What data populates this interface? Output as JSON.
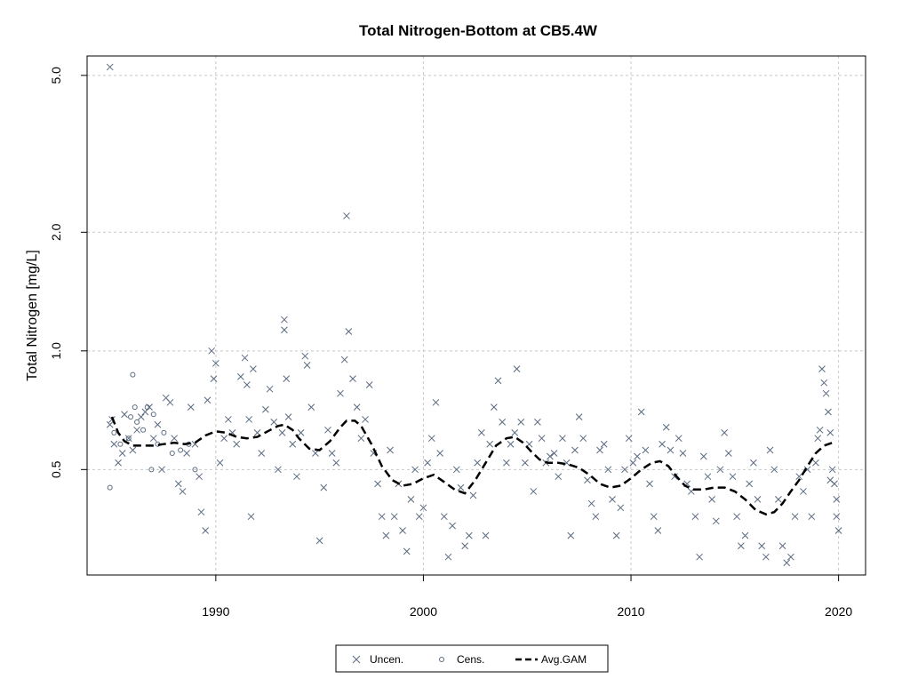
{
  "chart_data": {
    "type": "scatter",
    "title": "Total Nitrogen-Bottom at CB5.4W",
    "xlabel": "",
    "ylabel": "Total Nitrogen [mg/L]",
    "y_scale": "log",
    "xlim": [
      1983.8,
      2021.3
    ],
    "ylim": [
      0.27,
      5.6
    ],
    "x_ticks": [
      1990,
      2000,
      2010,
      2020
    ],
    "x_tick_labels": [
      "1990",
      "2000",
      "2010",
      "2020"
    ],
    "y_ticks": [
      0.5,
      1.0,
      2.0,
      5.0
    ],
    "y_tick_labels": [
      "0.5",
      "1.0",
      "2.0",
      "5.0"
    ],
    "grid": true,
    "legend_position": "bottom",
    "colors": {
      "points": "#5a6a80",
      "line": "#000000",
      "grid": "#c8c8c8"
    },
    "series": [
      {
        "name": "Uncen.",
        "marker": "x",
        "points": [
          [
            1984.9,
            5.25
          ],
          [
            1984.9,
            0.65
          ],
          [
            1985.0,
            0.67
          ],
          [
            1985.1,
            0.58
          ],
          [
            1985.3,
            0.52
          ],
          [
            1985.5,
            0.55
          ],
          [
            1985.6,
            0.69
          ],
          [
            1985.8,
            0.6
          ],
          [
            1986.0,
            0.56
          ],
          [
            1986.2,
            0.63
          ],
          [
            1986.4,
            0.68
          ],
          [
            1986.6,
            0.7
          ],
          [
            1986.8,
            0.72
          ],
          [
            1987.0,
            0.6
          ],
          [
            1987.2,
            0.65
          ],
          [
            1987.4,
            0.5
          ],
          [
            1987.6,
            0.76
          ],
          [
            1987.8,
            0.74
          ],
          [
            1988.0,
            0.6
          ],
          [
            1988.2,
            0.46
          ],
          [
            1988.4,
            0.44
          ],
          [
            1988.6,
            0.55
          ],
          [
            1988.8,
            0.72
          ],
          [
            1989.0,
            0.58
          ],
          [
            1989.2,
            0.48
          ],
          [
            1989.3,
            0.39
          ],
          [
            1989.5,
            0.35
          ],
          [
            1989.6,
            0.75
          ],
          [
            1989.8,
            1.0
          ],
          [
            1989.9,
            0.85
          ],
          [
            1990.0,
            0.93
          ],
          [
            1990.2,
            0.52
          ],
          [
            1990.4,
            0.6
          ],
          [
            1990.6,
            0.67
          ],
          [
            1990.8,
            0.62
          ],
          [
            1991.0,
            0.58
          ],
          [
            1991.2,
            0.86
          ],
          [
            1991.4,
            0.96
          ],
          [
            1991.5,
            0.82
          ],
          [
            1991.6,
            0.67
          ],
          [
            1991.7,
            0.38
          ],
          [
            1991.8,
            0.9
          ],
          [
            1992.0,
            0.62
          ],
          [
            1992.2,
            0.55
          ],
          [
            1992.4,
            0.71
          ],
          [
            1992.6,
            0.8
          ],
          [
            1992.8,
            0.66
          ],
          [
            1993.0,
            0.5
          ],
          [
            1993.2,
            0.62
          ],
          [
            1993.3,
            1.2
          ],
          [
            1993.3,
            1.13
          ],
          [
            1993.4,
            0.85
          ],
          [
            1993.5,
            0.68
          ],
          [
            1993.7,
            0.58
          ],
          [
            1993.9,
            0.48
          ],
          [
            1994.1,
            0.62
          ],
          [
            1994.3,
            0.97
          ],
          [
            1994.4,
            0.92
          ],
          [
            1994.6,
            0.72
          ],
          [
            1994.8,
            0.55
          ],
          [
            1995.0,
            0.33
          ],
          [
            1995.2,
            0.45
          ],
          [
            1995.4,
            0.63
          ],
          [
            1995.6,
            0.55
          ],
          [
            1995.8,
            0.52
          ],
          [
            1996.0,
            0.78
          ],
          [
            1996.2,
            0.95
          ],
          [
            1996.3,
            2.2
          ],
          [
            1996.4,
            1.12
          ],
          [
            1996.6,
            0.85
          ],
          [
            1996.8,
            0.72
          ],
          [
            1997.0,
            0.6
          ],
          [
            1997.2,
            0.67
          ],
          [
            1997.4,
            0.82
          ],
          [
            1997.6,
            0.55
          ],
          [
            1997.8,
            0.46
          ],
          [
            1998.0,
            0.38
          ],
          [
            1998.2,
            0.34
          ],
          [
            1998.4,
            0.56
          ],
          [
            1998.6,
            0.38
          ],
          [
            1998.8,
            0.46
          ],
          [
            1999.0,
            0.35
          ],
          [
            1999.2,
            0.31
          ],
          [
            1999.4,
            0.42
          ],
          [
            1999.6,
            0.5
          ],
          [
            1999.8,
            0.38
          ],
          [
            2000.0,
            0.4
          ],
          [
            2000.2,
            0.52
          ],
          [
            2000.4,
            0.6
          ],
          [
            2000.6,
            0.74
          ],
          [
            2000.8,
            0.55
          ],
          [
            2001.0,
            0.38
          ],
          [
            2001.2,
            0.3
          ],
          [
            2001.4,
            0.36
          ],
          [
            2001.6,
            0.5
          ],
          [
            2001.8,
            0.45
          ],
          [
            2002.0,
            0.32
          ],
          [
            2002.2,
            0.34
          ],
          [
            2002.4,
            0.43
          ],
          [
            2002.6,
            0.52
          ],
          [
            2002.8,
            0.62
          ],
          [
            2003.0,
            0.34
          ],
          [
            2003.2,
            0.58
          ],
          [
            2003.4,
            0.72
          ],
          [
            2003.6,
            0.84
          ],
          [
            2003.8,
            0.66
          ],
          [
            2004.0,
            0.52
          ],
          [
            2004.2,
            0.58
          ],
          [
            2004.4,
            0.62
          ],
          [
            2004.5,
            0.9
          ],
          [
            2004.7,
            0.66
          ],
          [
            2004.9,
            0.52
          ],
          [
            2005.1,
            0.58
          ],
          [
            2005.3,
            0.44
          ],
          [
            2005.5,
            0.66
          ],
          [
            2005.7,
            0.6
          ],
          [
            2005.9,
            0.52
          ],
          [
            2006.1,
            0.54
          ],
          [
            2006.3,
            0.55
          ],
          [
            2006.5,
            0.48
          ],
          [
            2006.7,
            0.6
          ],
          [
            2006.9,
            0.52
          ],
          [
            2007.1,
            0.34
          ],
          [
            2007.3,
            0.56
          ],
          [
            2007.5,
            0.68
          ],
          [
            2007.7,
            0.6
          ],
          [
            2007.9,
            0.47
          ],
          [
            2008.1,
            0.41
          ],
          [
            2008.3,
            0.38
          ],
          [
            2008.5,
            0.56
          ],
          [
            2008.7,
            0.58
          ],
          [
            2008.9,
            0.5
          ],
          [
            2009.1,
            0.42
          ],
          [
            2009.3,
            0.34
          ],
          [
            2009.5,
            0.4
          ],
          [
            2009.7,
            0.5
          ],
          [
            2009.9,
            0.6
          ],
          [
            2010.1,
            0.52
          ],
          [
            2010.3,
            0.54
          ],
          [
            2010.5,
            0.7
          ],
          [
            2010.7,
            0.56
          ],
          [
            2010.9,
            0.46
          ],
          [
            2011.1,
            0.38
          ],
          [
            2011.3,
            0.35
          ],
          [
            2011.5,
            0.58
          ],
          [
            2011.7,
            0.64
          ],
          [
            2011.9,
            0.56
          ],
          [
            2012.1,
            0.48
          ],
          [
            2012.3,
            0.6
          ],
          [
            2012.5,
            0.55
          ],
          [
            2012.7,
            0.46
          ],
          [
            2012.9,
            0.44
          ],
          [
            2013.1,
            0.38
          ],
          [
            2013.3,
            0.3
          ],
          [
            2013.5,
            0.54
          ],
          [
            2013.7,
            0.48
          ],
          [
            2013.9,
            0.42
          ],
          [
            2014.1,
            0.37
          ],
          [
            2014.3,
            0.5
          ],
          [
            2014.5,
            0.62
          ],
          [
            2014.7,
            0.55
          ],
          [
            2014.9,
            0.48
          ],
          [
            2015.1,
            0.38
          ],
          [
            2015.3,
            0.32
          ],
          [
            2015.5,
            0.34
          ],
          [
            2015.7,
            0.46
          ],
          [
            2015.9,
            0.52
          ],
          [
            2016.1,
            0.42
          ],
          [
            2016.3,
            0.32
          ],
          [
            2016.5,
            0.3
          ],
          [
            2016.7,
            0.56
          ],
          [
            2016.9,
            0.5
          ],
          [
            2017.1,
            0.42
          ],
          [
            2017.3,
            0.32
          ],
          [
            2017.5,
            0.29
          ],
          [
            2017.7,
            0.3
          ],
          [
            2017.9,
            0.38
          ],
          [
            2018.1,
            0.48
          ],
          [
            2018.3,
            0.44
          ],
          [
            2018.5,
            0.5
          ],
          [
            2018.7,
            0.38
          ],
          [
            2018.9,
            0.52
          ],
          [
            2019.0,
            0.6
          ],
          [
            2019.1,
            0.63
          ],
          [
            2019.2,
            0.9
          ],
          [
            2019.3,
            0.83
          ],
          [
            2019.4,
            0.78
          ],
          [
            2019.5,
            0.7
          ],
          [
            2019.6,
            0.62
          ],
          [
            2019.7,
            0.5
          ],
          [
            2019.8,
            0.46
          ],
          [
            2019.9,
            0.38
          ],
          [
            2020.0,
            0.35
          ],
          [
            2019.9,
            0.42
          ],
          [
            2019.6,
            0.47
          ]
        ]
      },
      {
        "name": "Cens.",
        "marker": "o",
        "points": [
          [
            1984.9,
            0.45
          ],
          [
            1985.1,
            0.62
          ],
          [
            1985.4,
            0.58
          ],
          [
            1985.8,
            0.6
          ],
          [
            1986.0,
            0.87
          ],
          [
            1986.1,
            0.72
          ],
          [
            1986.2,
            0.66
          ],
          [
            1986.5,
            0.63
          ],
          [
            1986.9,
            0.5
          ],
          [
            1987.2,
            0.58
          ],
          [
            1987.5,
            0.62
          ],
          [
            1987.9,
            0.55
          ],
          [
            1988.3,
            0.56
          ],
          [
            1988.7,
            0.58
          ],
          [
            1989.0,
            0.5
          ],
          [
            1986.7,
            0.72
          ],
          [
            1987.0,
            0.69
          ],
          [
            1985.9,
            0.68
          ]
        ]
      },
      {
        "name": "Avg.GAM",
        "marker": "line",
        "points": [
          [
            1985.0,
            0.68
          ],
          [
            1985.3,
            0.62
          ],
          [
            1985.6,
            0.59
          ],
          [
            1986.0,
            0.575
          ],
          [
            1986.5,
            0.575
          ],
          [
            1987.0,
            0.575
          ],
          [
            1987.5,
            0.58
          ],
          [
            1988.0,
            0.585
          ],
          [
            1988.5,
            0.58
          ],
          [
            1989.0,
            0.585
          ],
          [
            1989.5,
            0.61
          ],
          [
            1990.0,
            0.625
          ],
          [
            1990.5,
            0.62
          ],
          [
            1991.0,
            0.605
          ],
          [
            1991.5,
            0.6
          ],
          [
            1992.0,
            0.605
          ],
          [
            1992.5,
            0.625
          ],
          [
            1993.0,
            0.645
          ],
          [
            1993.3,
            0.65
          ],
          [
            1993.7,
            0.63
          ],
          [
            1994.0,
            0.6
          ],
          [
            1994.5,
            0.565
          ],
          [
            1995.0,
            0.56
          ],
          [
            1995.5,
            0.59
          ],
          [
            1996.0,
            0.64
          ],
          [
            1996.3,
            0.665
          ],
          [
            1996.7,
            0.665
          ],
          [
            1997.0,
            0.645
          ],
          [
            1997.5,
            0.58
          ],
          [
            1998.0,
            0.51
          ],
          [
            1998.5,
            0.47
          ],
          [
            1999.0,
            0.455
          ],
          [
            1999.5,
            0.46
          ],
          [
            2000.0,
            0.475
          ],
          [
            2000.5,
            0.485
          ],
          [
            2001.0,
            0.465
          ],
          [
            2001.5,
            0.445
          ],
          [
            2002.0,
            0.435
          ],
          [
            2002.5,
            0.47
          ],
          [
            2003.0,
            0.52
          ],
          [
            2003.5,
            0.575
          ],
          [
            2004.0,
            0.6
          ],
          [
            2004.4,
            0.605
          ],
          [
            2004.8,
            0.585
          ],
          [
            2005.2,
            0.555
          ],
          [
            2005.6,
            0.53
          ],
          [
            2006.0,
            0.52
          ],
          [
            2006.5,
            0.52
          ],
          [
            2007.0,
            0.515
          ],
          [
            2007.5,
            0.505
          ],
          [
            2008.0,
            0.485
          ],
          [
            2008.5,
            0.46
          ],
          [
            2009.0,
            0.45
          ],
          [
            2009.5,
            0.455
          ],
          [
            2010.0,
            0.475
          ],
          [
            2010.5,
            0.5
          ],
          [
            2011.0,
            0.52
          ],
          [
            2011.4,
            0.525
          ],
          [
            2011.8,
            0.51
          ],
          [
            2012.2,
            0.48
          ],
          [
            2012.6,
            0.455
          ],
          [
            2013.0,
            0.445
          ],
          [
            2013.5,
            0.445
          ],
          [
            2014.0,
            0.45
          ],
          [
            2014.5,
            0.45
          ],
          [
            2015.0,
            0.44
          ],
          [
            2015.5,
            0.42
          ],
          [
            2016.0,
            0.395
          ],
          [
            2016.5,
            0.385
          ],
          [
            2016.9,
            0.39
          ],
          [
            2017.3,
            0.41
          ],
          [
            2017.7,
            0.44
          ],
          [
            2018.1,
            0.47
          ],
          [
            2018.5,
            0.51
          ],
          [
            2018.9,
            0.55
          ],
          [
            2019.3,
            0.575
          ],
          [
            2019.7,
            0.585
          ]
        ]
      }
    ]
  },
  "legend": {
    "items": [
      {
        "label": "Uncen.",
        "symbol": "×"
      },
      {
        "label": "Cens.",
        "symbol": "○"
      },
      {
        "label": "Avg.GAM",
        "symbol": "line"
      }
    ]
  }
}
